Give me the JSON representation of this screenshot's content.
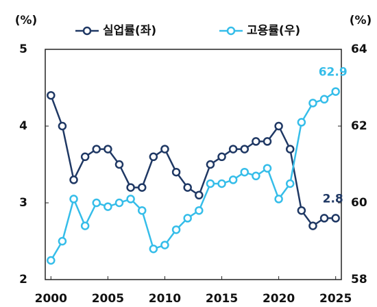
{
  "chart_data": {
    "type": "line",
    "y_label": "(%)",
    "y2_label": "(%)",
    "x": [
      2000,
      2001,
      2002,
      2003,
      2004,
      2005,
      2006,
      2007,
      2008,
      2009,
      2010,
      2011,
      2012,
      2013,
      2014,
      2015,
      2016,
      2017,
      2018,
      2019,
      2020,
      2021,
      2022,
      2023,
      2024,
      2025
    ],
    "series": [
      {
        "name": "실업률(좌)",
        "color": "#1f3864",
        "axis": "y",
        "values": [
          4.4,
          4.0,
          3.3,
          3.6,
          3.7,
          3.7,
          3.5,
          3.2,
          3.2,
          3.6,
          3.7,
          3.4,
          3.2,
          3.1,
          3.5,
          3.6,
          3.7,
          3.7,
          3.8,
          3.8,
          4.0,
          3.7,
          2.9,
          2.7,
          2.8,
          2.8
        ]
      },
      {
        "name": "고용률(우)",
        "color": "#35bde9",
        "axis": "y2",
        "values": [
          58.5,
          59.0,
          60.1,
          59.4,
          60.0,
          59.9,
          60.0,
          60.1,
          59.8,
          58.8,
          58.9,
          59.3,
          59.6,
          59.8,
          60.5,
          60.5,
          60.6,
          60.8,
          60.7,
          60.9,
          60.1,
          60.5,
          62.1,
          62.6,
          62.7,
          62.9
        ]
      }
    ],
    "xlim": [
      1999.5,
      2025.5
    ],
    "xticks": [
      2000,
      2005,
      2010,
      2015,
      2020,
      2025
    ],
    "ylim": [
      2,
      5
    ],
    "yticks": [
      2,
      3,
      4,
      5
    ],
    "y2lim": [
      58,
      64
    ],
    "y2ticks": [
      58,
      60,
      62,
      64
    ],
    "legend": "top"
  }
}
